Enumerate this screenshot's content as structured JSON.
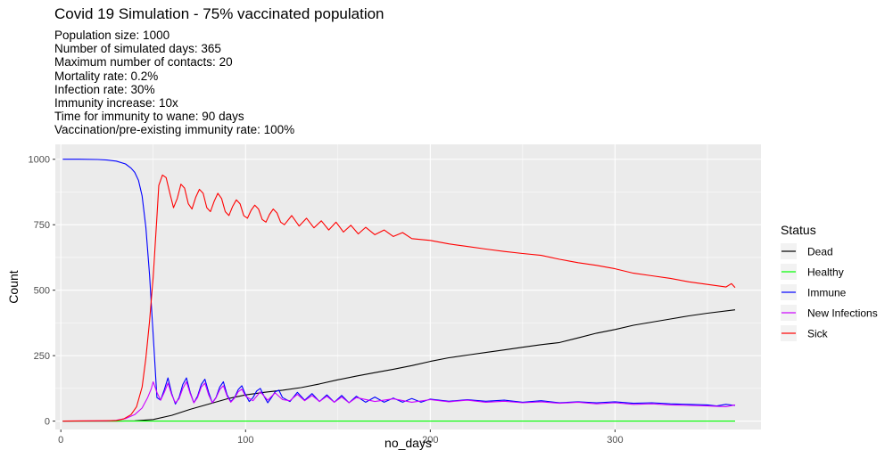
{
  "title": "Covid 19 Simulation - 75% vaccinated population",
  "subtitle_lines": [
    "Population size: 1000",
    "Number of simulated days: 365",
    "Maximum number of contacts: 20",
    "Mortality rate: 0.2%",
    "Infection rate: 30%",
    "Immunity increase: 10x",
    "Time for immunity to wane: 90 days",
    "Vaccination/pre-existing immunity rate: 100%"
  ],
  "chart_data": {
    "type": "line",
    "xlabel": "no_days",
    "ylabel": "Count",
    "xlim": [
      -3,
      379
    ],
    "ylim": [
      -32,
      1057
    ],
    "x_ticks": [
      0,
      100,
      200,
      300
    ],
    "y_ticks": [
      0,
      250,
      500,
      750,
      1000
    ],
    "grid": true,
    "background": "#ebebeb",
    "legend": {
      "title": "Status",
      "placement": "right"
    },
    "series": [
      {
        "name": "Dead",
        "color": "#000000",
        "points": [
          [
            1,
            0
          ],
          [
            30,
            0
          ],
          [
            40,
            1
          ],
          [
            50,
            6
          ],
          [
            60,
            22
          ],
          [
            70,
            45
          ],
          [
            80,
            65
          ],
          [
            90,
            85
          ],
          [
            100,
            100
          ],
          [
            110,
            110
          ],
          [
            120,
            118
          ],
          [
            130,
            128
          ],
          [
            140,
            142
          ],
          [
            150,
            158
          ],
          [
            160,
            172
          ],
          [
            170,
            185
          ],
          [
            180,
            198
          ],
          [
            190,
            212
          ],
          [
            200,
            228
          ],
          [
            210,
            242
          ],
          [
            220,
            252
          ],
          [
            230,
            262
          ],
          [
            240,
            272
          ],
          [
            250,
            282
          ],
          [
            260,
            292
          ],
          [
            270,
            300
          ],
          [
            280,
            318
          ],
          [
            290,
            336
          ],
          [
            300,
            350
          ],
          [
            310,
            366
          ],
          [
            320,
            378
          ],
          [
            330,
            390
          ],
          [
            340,
            402
          ],
          [
            350,
            412
          ],
          [
            365,
            425
          ]
        ]
      },
      {
        "name": "Healthy",
        "color": "#00ff00",
        "points": [
          [
            1,
            0
          ],
          [
            365,
            0
          ]
        ]
      },
      {
        "name": "Immune",
        "color": "#0000ff",
        "points": [
          [
            1,
            1000
          ],
          [
            10,
            1000
          ],
          [
            20,
            999
          ],
          [
            25,
            997
          ],
          [
            30,
            993
          ],
          [
            35,
            982
          ],
          [
            38,
            966
          ],
          [
            40,
            950
          ],
          [
            42,
            920
          ],
          [
            44,
            860
          ],
          [
            46,
            740
          ],
          [
            48,
            560
          ],
          [
            50,
            330
          ],
          [
            52,
            90
          ],
          [
            54,
            80
          ],
          [
            56,
            120
          ],
          [
            58,
            165
          ],
          [
            60,
            105
          ],
          [
            62,
            65
          ],
          [
            64,
            90
          ],
          [
            66,
            140
          ],
          [
            68,
            165
          ],
          [
            70,
            110
          ],
          [
            72,
            70
          ],
          [
            74,
            95
          ],
          [
            76,
            140
          ],
          [
            78,
            160
          ],
          [
            80,
            110
          ],
          [
            82,
            70
          ],
          [
            84,
            90
          ],
          [
            86,
            130
          ],
          [
            88,
            150
          ],
          [
            90,
            100
          ],
          [
            92,
            75
          ],
          [
            94,
            90
          ],
          [
            96,
            120
          ],
          [
            98,
            135
          ],
          [
            100,
            100
          ],
          [
            102,
            75
          ],
          [
            104,
            90
          ],
          [
            106,
            115
          ],
          [
            108,
            125
          ],
          [
            110,
            95
          ],
          [
            112,
            70
          ],
          [
            114,
            90
          ],
          [
            116,
            112
          ],
          [
            118,
            118
          ],
          [
            120,
            90
          ],
          [
            124,
            75
          ],
          [
            128,
            110
          ],
          [
            132,
            80
          ],
          [
            136,
            105
          ],
          [
            140,
            75
          ],
          [
            144,
            100
          ],
          [
            148,
            72
          ],
          [
            152,
            98
          ],
          [
            156,
            70
          ],
          [
            160,
            95
          ],
          [
            165,
            72
          ],
          [
            170,
            92
          ],
          [
            175,
            72
          ],
          [
            180,
            88
          ],
          [
            185,
            72
          ],
          [
            190,
            86
          ],
          [
            195,
            72
          ],
          [
            200,
            84
          ],
          [
            210,
            76
          ],
          [
            220,
            82
          ],
          [
            230,
            76
          ],
          [
            240,
            80
          ],
          [
            250,
            72
          ],
          [
            260,
            78
          ],
          [
            270,
            70
          ],
          [
            280,
            74
          ],
          [
            290,
            70
          ],
          [
            300,
            74
          ],
          [
            310,
            68
          ],
          [
            320,
            70
          ],
          [
            330,
            66
          ],
          [
            340,
            64
          ],
          [
            350,
            62
          ],
          [
            355,
            58
          ],
          [
            360,
            64
          ],
          [
            365,
            60
          ]
        ]
      },
      {
        "name": "New Infections",
        "color": "#cc00ff",
        "points": [
          [
            1,
            0
          ],
          [
            25,
            1
          ],
          [
            30,
            3
          ],
          [
            35,
            10
          ],
          [
            40,
            25
          ],
          [
            44,
            50
          ],
          [
            47,
            90
          ],
          [
            49,
            125
          ],
          [
            50,
            150
          ],
          [
            52,
            110
          ],
          [
            54,
            80
          ],
          [
            56,
            110
          ],
          [
            58,
            145
          ],
          [
            60,
            100
          ],
          [
            62,
            70
          ],
          [
            64,
            85
          ],
          [
            66,
            125
          ],
          [
            68,
            150
          ],
          [
            70,
            105
          ],
          [
            72,
            70
          ],
          [
            74,
            90
          ],
          [
            76,
            130
          ],
          [
            78,
            145
          ],
          [
            80,
            100
          ],
          [
            82,
            70
          ],
          [
            84,
            88
          ],
          [
            86,
            120
          ],
          [
            88,
            135
          ],
          [
            90,
            95
          ],
          [
            92,
            72
          ],
          [
            94,
            88
          ],
          [
            96,
            112
          ],
          [
            98,
            122
          ],
          [
            100,
            95
          ],
          [
            104,
            78
          ],
          [
            108,
            112
          ],
          [
            112,
            80
          ],
          [
            116,
            108
          ],
          [
            120,
            82
          ],
          [
            124,
            78
          ],
          [
            128,
            102
          ],
          [
            132,
            78
          ],
          [
            136,
            98
          ],
          [
            140,
            75
          ],
          [
            144,
            95
          ],
          [
            148,
            72
          ],
          [
            152,
            92
          ],
          [
            156,
            70
          ],
          [
            160,
            90
          ],
          [
            170,
            75
          ],
          [
            180,
            85
          ],
          [
            190,
            72
          ],
          [
            200,
            82
          ],
          [
            210,
            74
          ],
          [
            220,
            80
          ],
          [
            230,
            72
          ],
          [
            240,
            76
          ],
          [
            250,
            70
          ],
          [
            260,
            74
          ],
          [
            270,
            68
          ],
          [
            280,
            72
          ],
          [
            290,
            66
          ],
          [
            300,
            70
          ],
          [
            310,
            64
          ],
          [
            320,
            66
          ],
          [
            330,
            62
          ],
          [
            340,
            60
          ],
          [
            350,
            58
          ],
          [
            360,
            55
          ],
          [
            365,
            62
          ]
        ]
      },
      {
        "name": "Sick",
        "color": "#ff0000",
        "points": [
          [
            1,
            0
          ],
          [
            30,
            2
          ],
          [
            34,
            8
          ],
          [
            38,
            25
          ],
          [
            41,
            55
          ],
          [
            44,
            130
          ],
          [
            46,
            240
          ],
          [
            48,
            380
          ],
          [
            50,
            550
          ],
          [
            52,
            780
          ],
          [
            53,
            900
          ],
          [
            55,
            940
          ],
          [
            57,
            930
          ],
          [
            59,
            870
          ],
          [
            61,
            815
          ],
          [
            63,
            850
          ],
          [
            65,
            905
          ],
          [
            67,
            890
          ],
          [
            69,
            830
          ],
          [
            71,
            810
          ],
          [
            73,
            855
          ],
          [
            75,
            885
          ],
          [
            77,
            870
          ],
          [
            79,
            815
          ],
          [
            81,
            800
          ],
          [
            83,
            840
          ],
          [
            85,
            870
          ],
          [
            87,
            850
          ],
          [
            89,
            800
          ],
          [
            91,
            785
          ],
          [
            93,
            820
          ],
          [
            95,
            845
          ],
          [
            97,
            830
          ],
          [
            99,
            785
          ],
          [
            101,
            775
          ],
          [
            103,
            805
          ],
          [
            105,
            825
          ],
          [
            107,
            810
          ],
          [
            109,
            770
          ],
          [
            111,
            760
          ],
          [
            113,
            790
          ],
          [
            115,
            810
          ],
          [
            117,
            795
          ],
          [
            119,
            760
          ],
          [
            121,
            750
          ],
          [
            125,
            785
          ],
          [
            129,
            745
          ],
          [
            133,
            775
          ],
          [
            137,
            738
          ],
          [
            141,
            765
          ],
          [
            145,
            730
          ],
          [
            149,
            760
          ],
          [
            153,
            722
          ],
          [
            157,
            748
          ],
          [
            161,
            715
          ],
          [
            165,
            740
          ],
          [
            170,
            712
          ],
          [
            175,
            730
          ],
          [
            180,
            705
          ],
          [
            185,
            720
          ],
          [
            190,
            697
          ],
          [
            200,
            690
          ],
          [
            210,
            677
          ],
          [
            220,
            667
          ],
          [
            230,
            657
          ],
          [
            240,
            648
          ],
          [
            250,
            640
          ],
          [
            260,
            633
          ],
          [
            270,
            618
          ],
          [
            280,
            605
          ],
          [
            290,
            595
          ],
          [
            300,
            582
          ],
          [
            310,
            565
          ],
          [
            320,
            555
          ],
          [
            330,
            545
          ],
          [
            340,
            532
          ],
          [
            350,
            522
          ],
          [
            360,
            512
          ],
          [
            363,
            525
          ],
          [
            365,
            510
          ]
        ]
      }
    ]
  }
}
